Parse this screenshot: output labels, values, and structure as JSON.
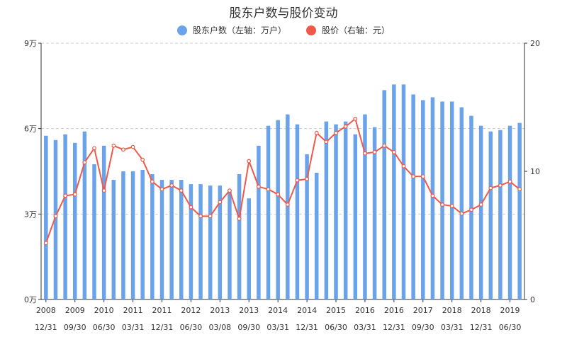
{
  "chart_data": {
    "type": "bar+line",
    "title": "股东户数与股价变动",
    "legend": [
      {
        "name": "股东户数（左轴：万户）",
        "color": "#6aa3ea"
      },
      {
        "name": "股价（右轴：元）",
        "color": "#f0584a"
      }
    ],
    "left_axis": {
      "min": 0,
      "max": 9,
      "ticks": [
        0,
        3,
        6,
        9
      ],
      "labels": [
        "0万",
        "3万",
        "6万",
        "9万"
      ]
    },
    "right_axis": {
      "min": 0,
      "max": 20,
      "ticks": [
        0,
        10,
        20
      ],
      "labels": [
        "0",
        "10",
        "20"
      ]
    },
    "x_labels": [
      {
        "year": "2008",
        "date": "12/31",
        "index": 0
      },
      {
        "year": "2009",
        "date": "09/30",
        "index": 3
      },
      {
        "year": "2010",
        "date": "06/30",
        "index": 6
      },
      {
        "year": "2011",
        "date": "03/31",
        "index": 9
      },
      {
        "year": "2011",
        "date": "12/31",
        "index": 12
      },
      {
        "year": "2012",
        "date": "06/30",
        "index": 15
      },
      {
        "year": "2013",
        "date": "03/08",
        "index": 18
      },
      {
        "year": "2013",
        "date": "09/30",
        "index": 21
      },
      {
        "year": "2014",
        "date": "03/31",
        "index": 24
      },
      {
        "year": "2014",
        "date": "12/31",
        "index": 27
      },
      {
        "year": "2015",
        "date": "06/30",
        "index": 30
      },
      {
        "year": "2016",
        "date": "03/31",
        "index": 33
      },
      {
        "year": "2016",
        "date": "12/31",
        "index": 36
      },
      {
        "year": "2017",
        "date": "09/30",
        "index": 39
      },
      {
        "year": "2018",
        "date": "03/31",
        "index": 42
      },
      {
        "year": "2018",
        "date": "12/31",
        "index": 45
      },
      {
        "year": "2019",
        "date": "06/30",
        "index": 48
      }
    ],
    "series": [
      {
        "name": "股东户数",
        "axis": "left",
        "unit": "万户",
        "values": [
          5.75,
          5.6,
          5.8,
          5.5,
          5.9,
          4.75,
          5.4,
          4.2,
          4.5,
          4.5,
          4.55,
          4.4,
          4.2,
          4.2,
          4.2,
          4.05,
          4.05,
          4.0,
          4.0,
          3.85,
          4.4,
          3.55,
          5.4,
          6.1,
          6.3,
          6.5,
          6.15,
          5.1,
          4.45,
          6.25,
          6.15,
          6.25,
          5.8,
          6.5,
          6.05,
          7.35,
          7.55,
          7.55,
          7.2,
          7.0,
          7.1,
          6.95,
          6.95,
          6.75,
          6.45,
          6.1,
          5.9,
          5.95,
          6.1,
          6.2
        ]
      },
      {
        "name": "股价",
        "axis": "right",
        "unit": "元",
        "values": [
          4.4,
          6.5,
          8.1,
          8.2,
          10.7,
          11.8,
          8.5,
          12.0,
          11.7,
          11.9,
          10.9,
          9.2,
          8.6,
          8.9,
          8.5,
          7.2,
          6.5,
          6.5,
          7.6,
          8.5,
          6.3,
          10.8,
          8.8,
          8.6,
          8.2,
          7.4,
          9.3,
          9.4,
          13.0,
          12.3,
          13.0,
          13.5,
          14.1,
          11.4,
          11.5,
          12.0,
          11.5,
          10.4,
          9.6,
          9.6,
          8.1,
          7.4,
          7.3,
          6.7,
          7.0,
          7.4,
          8.7,
          8.9,
          9.2,
          8.6
        ]
      }
    ]
  }
}
